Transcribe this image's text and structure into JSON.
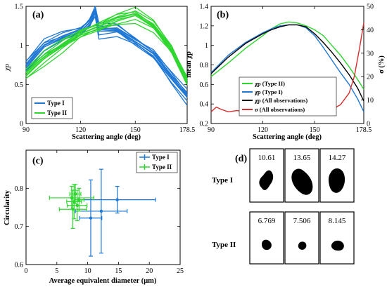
{
  "panels": {
    "a": {
      "label": "(a)",
      "chart_data": {
        "type": "line",
        "xlabel": "Scattering angle (deg)",
        "ylabel": "χp",
        "xlim": [
          90,
          178.5
        ],
        "ylim": [
          0,
          1.5
        ],
        "xticks": [
          "90",
          "120",
          "150",
          "178.5"
        ],
        "yticks": [
          "0",
          "0.5",
          "1",
          "1.5"
        ],
        "legend": [
          "Type I",
          "Type II"
        ],
        "legend_position": "bottom-left",
        "series_colors": {
          "Type I": "#1f77d4",
          "Type II": "#2fd62f"
        },
        "series": [
          {
            "name": "Type I",
            "x": [
              90,
              100,
              110,
              120,
              125,
              128,
              130,
              140,
              150,
              160,
              170,
              178.5
            ],
            "y": [
              0.75,
              1.0,
              1.1,
              1.18,
              1.3,
              1.45,
              1.2,
              1.2,
              1.05,
              0.9,
              0.6,
              0.35
            ]
          },
          {
            "name": "Type II",
            "x": [
              90,
              100,
              110,
              120,
              130,
              140,
              150,
              160,
              170,
              178.5
            ],
            "y": [
              0.65,
              0.85,
              1.0,
              1.15,
              1.25,
              1.35,
              1.4,
              1.25,
              0.95,
              0.55
            ]
          }
        ]
      }
    },
    "b": {
      "label": "(b)",
      "chart_data": {
        "type": "line",
        "xlabel": "Scattering angle (deg)",
        "ylabel": "mean χp",
        "y2label": "σ (%)",
        "xlim": [
          90,
          178.5
        ],
        "ylim": [
          0.2,
          1.4
        ],
        "y2lim": [
          0,
          50
        ],
        "xticks": [
          "90",
          "120",
          "150",
          "178.5"
        ],
        "yticks": [
          "0.2",
          "0.4",
          "0.6",
          "0.8",
          "1",
          "1.2",
          "1.4"
        ],
        "y2ticks": [
          "0",
          "10",
          "20",
          "30",
          "40",
          "50"
        ],
        "legend": [
          "χp (Type II)",
          "χp (Type I)",
          "χp (All observations)",
          "σ (All observations)"
        ],
        "legend_position": "bottom-right",
        "series_colors": {
          "Type II": "#2fd62f",
          "Type I": "#1f77d4",
          "All": "#000000",
          "sigma": "#d62f2f"
        },
        "series": [
          {
            "name": "χp (Type II)",
            "x": [
              90,
              100,
              110,
              120,
              125,
              130,
              135,
              140,
              145,
              150,
              155,
              160,
              165,
              170,
              175,
              178.5
            ],
            "y": [
              0.68,
              0.82,
              0.97,
              1.1,
              1.17,
              1.22,
              1.24,
              1.23,
              1.2,
              1.16,
              1.1,
              1.0,
              0.9,
              0.78,
              0.65,
              0.55
            ]
          },
          {
            "name": "χp (Type I)",
            "x": [
              90,
              100,
              110,
              120,
              125,
              130,
              135,
              140,
              145,
              150,
              155,
              160,
              165,
              170,
              175,
              178.5
            ],
            "y": [
              0.72,
              0.9,
              1.03,
              1.13,
              1.17,
              1.2,
              1.21,
              1.21,
              1.18,
              1.1,
              0.98,
              0.85,
              0.72,
              0.6,
              0.45,
              0.32
            ]
          },
          {
            "name": "χp (All observations)",
            "x": [
              90,
              100,
              110,
              120,
              125,
              130,
              135,
              140,
              145,
              150,
              155,
              160,
              165,
              170,
              175,
              178.5
            ],
            "y": [
              0.71,
              0.88,
              1.02,
              1.12,
              1.16,
              1.19,
              1.21,
              1.21,
              1.19,
              1.12,
              1.03,
              0.93,
              0.82,
              0.7,
              0.56,
              0.43
            ]
          },
          {
            "name": "σ (All observations)",
            "axis": "right",
            "x": [
              90,
              93,
              96,
              100,
              105,
              110,
              115,
              120,
              125,
              130,
              135,
              140,
              145,
              150,
              155,
              160,
              165,
              170,
              173,
              176,
              178.5
            ],
            "y": [
              5,
              7,
              6,
              5,
              5.5,
              5,
              5.5,
              4.5,
              4,
              5,
              4.5,
              5,
              5,
              4.5,
              5,
              6,
              8,
              13,
              20,
              32,
              43
            ]
          }
        ]
      }
    },
    "c": {
      "label": "(c)",
      "chart_data": {
        "type": "scatter",
        "xlabel": "Average equivalent diameter (μm)",
        "ylabel": "Circularity",
        "xlim": [
          0,
          25
        ],
        "ylim": [
          0.6,
          0.9
        ],
        "xticks": [
          "0",
          "5",
          "10",
          "15",
          "20",
          "25"
        ],
        "yticks": [
          "0.6",
          "0.7",
          "0.8"
        ],
        "legend": [
          "Type I",
          "Type II"
        ],
        "legend_position": "top-right",
        "series_colors": {
          "Type I": "#1f77d4",
          "Type II": "#2fd62f"
        },
        "series": [
          {
            "name": "Type I",
            "points": [
              {
                "x": 10.5,
                "y": 0.722,
                "xerr": 1.8,
                "yerr": 0.1
              },
              {
                "x": 12.2,
                "y": 0.74,
                "xerr": 4.2,
                "yerr": 0.11
              },
              {
                "x": 14.8,
                "y": 0.77,
                "xerr": 6.2,
                "yerr": 0.035
              }
            ]
          },
          {
            "name": "Type II",
            "points": [
              {
                "x": 7.4,
                "y": 0.775,
                "xerr": 3.6,
                "yerr": 0.03
              },
              {
                "x": 7.8,
                "y": 0.765,
                "xerr": 1.2,
                "yerr": 0.045
              },
              {
                "x": 8.0,
                "y": 0.785,
                "xerr": 0.9,
                "yerr": 0.025
              },
              {
                "x": 8.3,
                "y": 0.755,
                "xerr": 1.6,
                "yerr": 0.04
              },
              {
                "x": 7.6,
                "y": 0.745,
                "xerr": 2.2,
                "yerr": 0.05
              },
              {
                "x": 8.6,
                "y": 0.77,
                "xerr": 0.8,
                "yerr": 0.03
              }
            ]
          }
        ]
      }
    },
    "d": {
      "label": "(d)",
      "row_labels": [
        "Type I",
        "Type II"
      ],
      "rows": [
        {
          "values": [
            "10.61",
            "13.65",
            "14.27"
          ]
        },
        {
          "values": [
            "6.769",
            "7.506",
            "8.145"
          ]
        }
      ]
    }
  }
}
